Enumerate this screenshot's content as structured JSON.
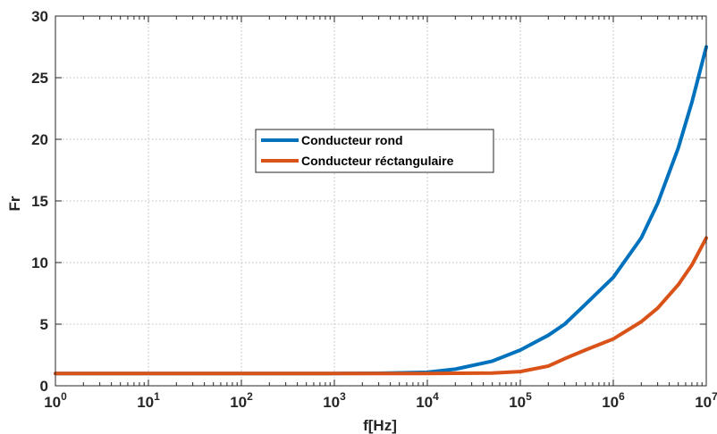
{
  "chart_data": {
    "type": "line",
    "xscale": "log",
    "xlim": [
      1,
      10000000
    ],
    "ylim": [
      0,
      30
    ],
    "xlabel": "f[Hz]",
    "ylabel": "Fr",
    "grid": true,
    "legend_position": "center",
    "x_ticks": [
      {
        "base": "10",
        "exp": "0",
        "value": 1
      },
      {
        "base": "10",
        "exp": "1",
        "value": 10
      },
      {
        "base": "10",
        "exp": "2",
        "value": 100
      },
      {
        "base": "10",
        "exp": "3",
        "value": 1000
      },
      {
        "base": "10",
        "exp": "4",
        "value": 10000
      },
      {
        "base": "10",
        "exp": "5",
        "value": 100000
      },
      {
        "base": "10",
        "exp": "6",
        "value": 1000000
      },
      {
        "base": "10",
        "exp": "7",
        "value": 10000000
      }
    ],
    "y_ticks": [
      "0",
      "5",
      "10",
      "15",
      "20",
      "25",
      "30"
    ],
    "series": [
      {
        "name": "Conducteur rond",
        "color": "#0072bd",
        "points": [
          [
            1,
            1.0
          ],
          [
            10,
            1.0
          ],
          [
            100,
            1.0
          ],
          [
            1000,
            1.0
          ],
          [
            3000,
            1.01
          ],
          [
            10000,
            1.1
          ],
          [
            20000,
            1.35
          ],
          [
            50000,
            2.0
          ],
          [
            100000,
            2.9
          ],
          [
            200000,
            4.1
          ],
          [
            300000,
            5.0
          ],
          [
            500000,
            6.6
          ],
          [
            1000000,
            8.8
          ],
          [
            2000000,
            12.0
          ],
          [
            3000000,
            14.8
          ],
          [
            5000000,
            19.3
          ],
          [
            7000000,
            23.0
          ],
          [
            10000000,
            27.5
          ]
        ]
      },
      {
        "name": "Conducteur réctangulaire",
        "color": "#d95319",
        "points": [
          [
            1,
            1.0
          ],
          [
            10,
            1.0
          ],
          [
            100,
            1.0
          ],
          [
            1000,
            1.0
          ],
          [
            10000,
            1.0
          ],
          [
            50000,
            1.03
          ],
          [
            100000,
            1.15
          ],
          [
            200000,
            1.6
          ],
          [
            300000,
            2.2
          ],
          [
            500000,
            2.9
          ],
          [
            1000000,
            3.8
          ],
          [
            2000000,
            5.2
          ],
          [
            3000000,
            6.3
          ],
          [
            5000000,
            8.2
          ],
          [
            7000000,
            9.8
          ],
          [
            10000000,
            12.0
          ]
        ]
      }
    ]
  }
}
